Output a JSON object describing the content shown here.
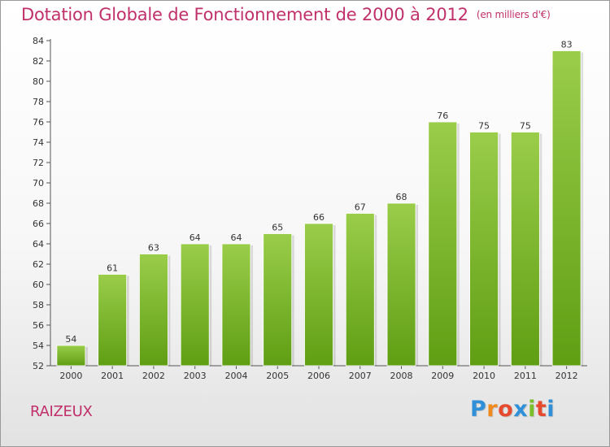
{
  "header": {
    "title": "Dotation Globale de Fonctionnement de 2000 à 2012",
    "unit": "(en milliers d'€)"
  },
  "footer": {
    "commune": "RAIZEUX",
    "logo": {
      "letters": [
        "P",
        "r",
        "o",
        "x",
        "i",
        "t",
        "i"
      ],
      "colors": [
        "#2f8fd8",
        "#f08a1c",
        "#e64a2e",
        "#2f8fd8",
        "#7bbf2a",
        "#e64a2e",
        "#2f8fd8"
      ]
    }
  },
  "chart_data": {
    "type": "bar",
    "title": "Dotation Globale de Fonctionnement de 2000 à 2012",
    "categories": [
      "2000",
      "2001",
      "2002",
      "2003",
      "2004",
      "2005",
      "2006",
      "2007",
      "2008",
      "2009",
      "2010",
      "2011",
      "2012"
    ],
    "values": [
      54,
      61,
      63,
      64,
      64,
      65,
      66,
      67,
      68,
      76,
      75,
      75,
      83
    ],
    "ylim": [
      52,
      84
    ],
    "yticks": [
      52,
      54,
      56,
      58,
      60,
      62,
      64,
      66,
      68,
      70,
      72,
      74,
      76,
      78,
      80,
      82,
      84
    ],
    "grid": false,
    "bar_color_top": "#9acd4a",
    "bar_color_bottom": "#5f9e14"
  }
}
